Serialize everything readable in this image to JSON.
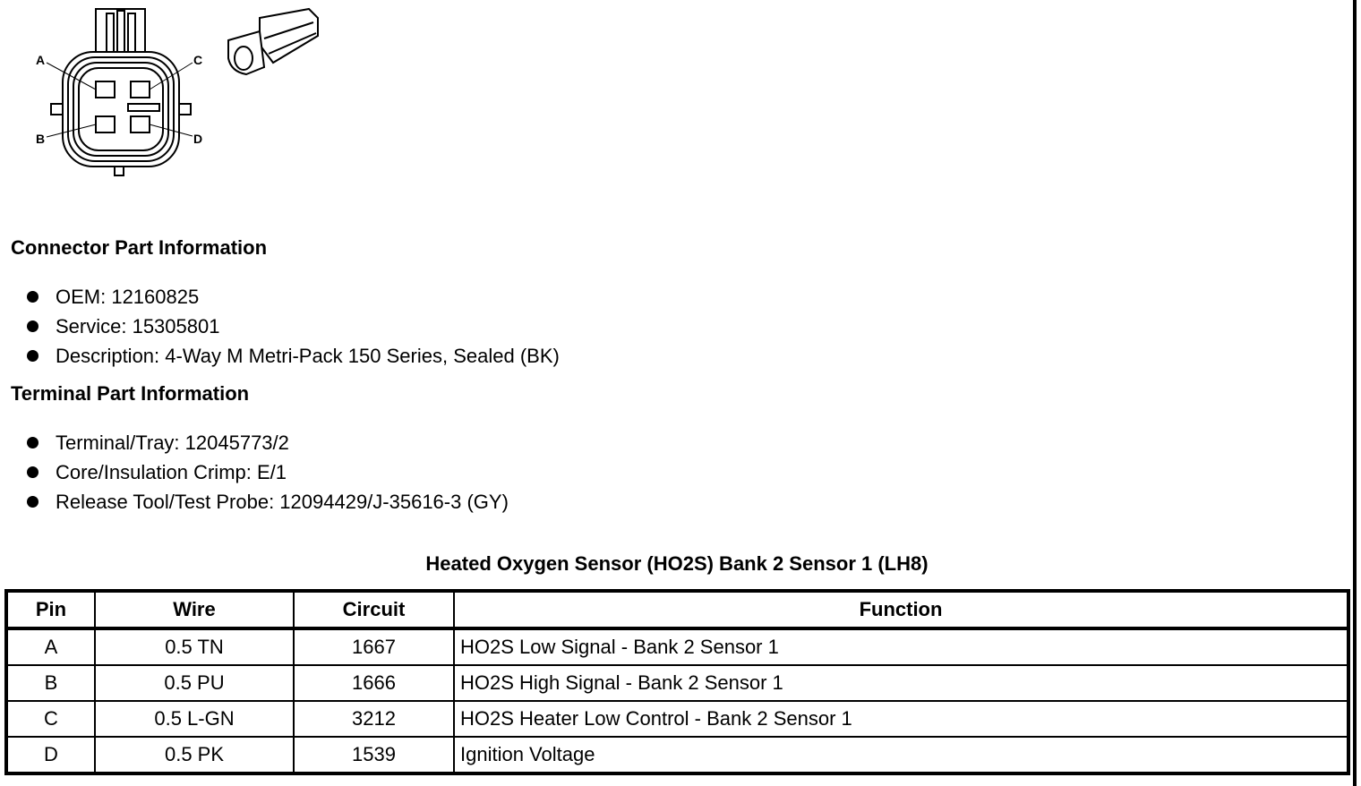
{
  "connector_diagram": {
    "pin_labels": [
      "A",
      "B",
      "C",
      "D"
    ]
  },
  "connector_part": {
    "heading": "Connector Part Information",
    "items": [
      "OEM: 12160825",
      "Service: 15305801",
      "Description: 4-Way M Metri-Pack 150 Series, Sealed (BK)"
    ]
  },
  "terminal_part": {
    "heading": "Terminal Part Information",
    "items": [
      "Terminal/Tray: 12045773/2",
      "Core/Insulation Crimp: E/1",
      "Release Tool/Test Probe: 12094429/J-35616-3 (GY)"
    ]
  },
  "table": {
    "title": "Heated Oxygen Sensor (HO2S) Bank 2 Sensor 1 (LH8)",
    "headers": [
      "Pin",
      "Wire",
      "Circuit",
      "Function"
    ],
    "rows": [
      [
        "A",
        "0.5 TN",
        "1667",
        "HO2S Low Signal - Bank 2 Sensor 1"
      ],
      [
        "B",
        "0.5 PU",
        "1666",
        "HO2S High Signal - Bank 2 Sensor 1"
      ],
      [
        "C",
        "0.5 L-GN",
        "3212",
        "HO2S Heater Low Control - Bank 2 Sensor 1"
      ],
      [
        "D",
        "0.5 PK",
        "1539",
        "Ignition Voltage"
      ]
    ]
  }
}
